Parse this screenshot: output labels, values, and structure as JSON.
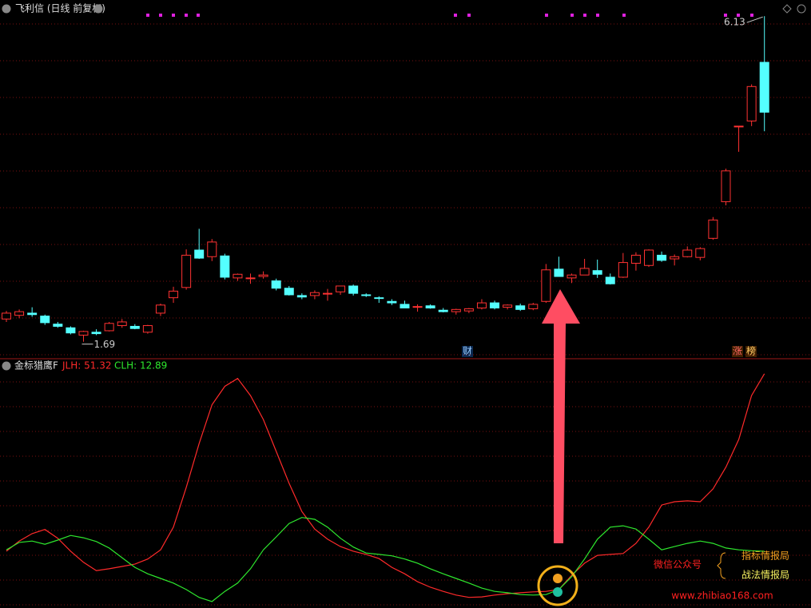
{
  "chart_data": [
    {
      "type": "candlestick",
      "title": "飞利信 (日线 前复权)",
      "ylim": [
        1.48,
        6.35
      ],
      "up_color": "#ff3232",
      "down_color": "#54ffff",
      "candles": [
        [
          2.0,
          2.11,
          1.96,
          2.08
        ],
        [
          2.05,
          2.13,
          2.01,
          2.1
        ],
        [
          2.08,
          2.16,
          2.03,
          2.06
        ],
        [
          2.04,
          2.06,
          1.92,
          1.95
        ],
        [
          1.93,
          1.96,
          1.88,
          1.9
        ],
        [
          1.88,
          1.9,
          1.79,
          1.81
        ],
        [
          1.78,
          1.84,
          1.69,
          1.83
        ],
        [
          1.82,
          1.86,
          1.78,
          1.8
        ],
        [
          1.84,
          1.96,
          1.83,
          1.94
        ],
        [
          1.91,
          2.0,
          1.88,
          1.96
        ],
        [
          1.9,
          1.93,
          1.86,
          1.87
        ],
        [
          1.82,
          1.92,
          1.8,
          1.91
        ],
        [
          2.08,
          2.21,
          2.04,
          2.19
        ],
        [
          2.29,
          2.44,
          2.22,
          2.38
        ],
        [
          2.43,
          2.95,
          2.4,
          2.87
        ],
        [
          2.94,
          3.23,
          2.82,
          2.83
        ],
        [
          2.85,
          3.09,
          2.79,
          3.05
        ],
        [
          2.86,
          2.89,
          2.54,
          2.57
        ],
        [
          2.56,
          2.62,
          2.52,
          2.61
        ],
        [
          2.55,
          2.62,
          2.48,
          2.56
        ],
        [
          2.58,
          2.65,
          2.55,
          2.6
        ],
        [
          2.52,
          2.55,
          2.39,
          2.42
        ],
        [
          2.42,
          2.45,
          2.32,
          2.33
        ],
        [
          2.32,
          2.35,
          2.27,
          2.3
        ],
        [
          2.32,
          2.39,
          2.27,
          2.36
        ],
        [
          2.35,
          2.41,
          2.25,
          2.35
        ],
        [
          2.37,
          2.45,
          2.33,
          2.45
        ],
        [
          2.45,
          2.47,
          2.32,
          2.35
        ],
        [
          2.33,
          2.35,
          2.3,
          2.32
        ],
        [
          2.29,
          2.31,
          2.22,
          2.28
        ],
        [
          2.24,
          2.27,
          2.19,
          2.22
        ],
        [
          2.2,
          2.25,
          2.15,
          2.15
        ],
        [
          2.17,
          2.2,
          2.1,
          2.17
        ],
        [
          2.18,
          2.2,
          2.14,
          2.15
        ],
        [
          2.12,
          2.15,
          2.09,
          2.1
        ],
        [
          2.1,
          2.14,
          2.06,
          2.13
        ],
        [
          2.11,
          2.15,
          2.08,
          2.14
        ],
        [
          2.15,
          2.27,
          2.13,
          2.22
        ],
        [
          2.22,
          2.25,
          2.13,
          2.15
        ],
        [
          2.16,
          2.2,
          2.13,
          2.19
        ],
        [
          2.18,
          2.21,
          2.11,
          2.13
        ],
        [
          2.14,
          2.22,
          2.12,
          2.2
        ],
        [
          2.24,
          2.75,
          2.22,
          2.67
        ],
        [
          2.68,
          2.85,
          2.58,
          2.58
        ],
        [
          2.56,
          2.62,
          2.49,
          2.6
        ],
        [
          2.6,
          2.82,
          2.6,
          2.69
        ],
        [
          2.66,
          2.81,
          2.56,
          2.61
        ],
        [
          2.57,
          2.62,
          2.47,
          2.48
        ],
        [
          2.57,
          2.9,
          2.56,
          2.77
        ],
        [
          2.76,
          2.91,
          2.66,
          2.87
        ],
        [
          2.73,
          2.95,
          2.71,
          2.94
        ],
        [
          2.87,
          2.92,
          2.78,
          2.8
        ],
        [
          2.82,
          2.88,
          2.73,
          2.85
        ],
        [
          2.85,
          2.99,
          2.84,
          2.94
        ],
        [
          2.84,
          2.98,
          2.8,
          2.96
        ],
        [
          3.1,
          3.39,
          3.08,
          3.35
        ],
        [
          3.6,
          4.05,
          3.55,
          4.02
        ],
        [
          4.63,
          4.63,
          4.28,
          4.63
        ],
        [
          4.7,
          5.2,
          4.63,
          5.17
        ],
        [
          5.5,
          6.13,
          4.56,
          4.82
        ]
      ],
      "markers": [
        "财",
        "涨",
        "榜"
      ]
    },
    {
      "type": "line",
      "title": "金标猎鹰F",
      "ylim": [
        0.6,
        54.4
      ],
      "series": [
        {
          "name": "JLH: 51.32",
          "color": "#ff2a2a",
          "values": [
            12.9,
            15.1,
            16.7,
            17.6,
            15.7,
            12.9,
            10.5,
            8.7,
            9.1,
            9.6,
            10.1,
            11.2,
            13.2,
            18.1,
            26.7,
            36.2,
            44.6,
            48.6,
            50.3,
            46.6,
            41.4,
            34.5,
            27.6,
            21.5,
            17.7,
            15.5,
            13.9,
            12.9,
            12.2,
            11.3,
            9.4,
            8.0,
            6.3,
            5.1,
            4.2,
            3.4,
            2.9,
            3.0,
            3.4,
            3.7,
            3.9,
            4.1,
            4.2,
            4.6,
            7.7,
            10.3,
            12.0,
            12.2,
            12.4,
            14.6,
            18.1,
            22.9,
            23.6,
            23.8,
            23.6,
            26.4,
            31.1,
            37.1,
            46.6,
            51.32
          ]
        },
        {
          "name": "CLH: 12.89",
          "color": "#2ee82e",
          "values": [
            13.2,
            14.8,
            15.1,
            14.4,
            15.3,
            16.3,
            15.8,
            15.0,
            13.6,
            11.5,
            9.4,
            8.0,
            7.0,
            6.0,
            4.6,
            2.9,
            2.0,
            4.2,
            6.0,
            9.1,
            13.2,
            16.0,
            18.9,
            20.2,
            19.8,
            18.1,
            15.7,
            13.8,
            12.5,
            12.2,
            11.9,
            11.2,
            10.3,
            9.1,
            8.0,
            7.0,
            6.0,
            4.9,
            4.2,
            3.9,
            3.5,
            3.4,
            3.5,
            4.6,
            7.4,
            11.2,
            15.5,
            18.1,
            18.4,
            17.7,
            15.5,
            13.2,
            13.9,
            14.6,
            15.1,
            14.6,
            13.6,
            13.2,
            13.0,
            12.89
          ]
        }
      ]
    }
  ],
  "watermark": {
    "lines": [
      "微信公众号",
      "指标情报局",
      "战法情报局",
      "www.zhibiao168.com"
    ]
  }
}
